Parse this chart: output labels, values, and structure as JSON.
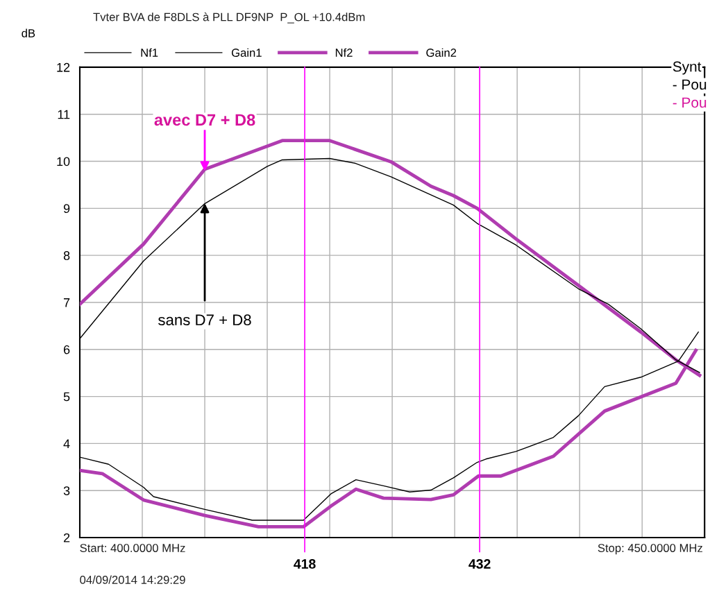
{
  "chart_data": {
    "type": "line",
    "title": "Tvter BVA de F8DLS à PLL DF9NP  P_OL +10.4dBm",
    "ylabel": "dB",
    "xlim": [
      400,
      450
    ],
    "xticks": [
      {
        "value": 400,
        "label": null
      },
      {
        "value": 405,
        "label": null
      },
      {
        "value": 410,
        "label": null
      },
      {
        "value": 415,
        "label": null
      },
      {
        "value": 420,
        "label": null
      },
      {
        "value": 425,
        "label": null
      },
      {
        "value": 430,
        "label": null
      },
      {
        "value": 435,
        "label": null
      },
      {
        "value": 440,
        "label": null
      },
      {
        "value": 445,
        "label": null
      },
      {
        "value": 450,
        "label": null
      }
    ],
    "ylim": [
      2,
      12
    ],
    "yticks": [
      2,
      3,
      4,
      5,
      6,
      7,
      8,
      9,
      10,
      11,
      12
    ],
    "tick_labels": "y",
    "grid": true,
    "legend": "top left",
    "marker": "none",
    "line_style": "solid",
    "series": [
      {
        "name": "Nf1",
        "color": "#000000",
        "x": [
          400,
          402.3,
          405.1,
          405.9,
          410,
          413.8,
          417.9,
          420.1,
          422.1,
          424.3,
          426.4,
          428.1,
          429.9,
          431.8,
          432.5,
          434.9,
          437.9,
          439.9,
          442.0,
          444.9,
          447.9,
          449.5
        ],
        "values": [
          3.71,
          3.56,
          3.07,
          2.87,
          2.6,
          2.37,
          2.37,
          2.93,
          3.23,
          3.1,
          2.97,
          3.01,
          3.27,
          3.6,
          3.67,
          3.83,
          4.13,
          4.59,
          5.21,
          5.41,
          5.75,
          6.37
        ]
      },
      {
        "name": "Gain1",
        "color": "#000000",
        "x": [
          400,
          405.1,
          410,
          415,
          416.2,
          420,
          422,
          424.9,
          429.9,
          431.8,
          434.9,
          439.9,
          442.3,
          444.9,
          447.7,
          449.6
        ],
        "values": [
          6.23,
          7.88,
          9.1,
          9.89,
          10.03,
          10.06,
          9.96,
          9.67,
          9.07,
          8.68,
          8.22,
          7.29,
          6.96,
          6.44,
          5.78,
          5.51
        ]
      },
      {
        "name": "Nf2",
        "color": "#b03cb0",
        "x": [
          400,
          401.8,
          405.1,
          410,
          414.3,
          417.9,
          420.1,
          422.1,
          424.3,
          428.1,
          429.9,
          431.9,
          433.7,
          437.9,
          442.0,
          447.7,
          449.3
        ],
        "values": [
          3.43,
          3.36,
          2.8,
          2.47,
          2.23,
          2.23,
          2.67,
          3.03,
          2.84,
          2.81,
          2.91,
          3.31,
          3.31,
          3.73,
          4.69,
          5.28,
          5.98
        ]
      },
      {
        "name": "Gain2",
        "color": "#b03cb0",
        "x": [
          400,
          405.1,
          410,
          415,
          416.2,
          420,
          424.9,
          428.1,
          429.9,
          431.8,
          434.9,
          439.9,
          444.9,
          447.7,
          449.6
        ],
        "values": [
          6.96,
          8.24,
          9.83,
          10.32,
          10.44,
          10.44,
          9.99,
          9.47,
          9.27,
          9.0,
          8.35,
          7.36,
          6.37,
          5.78,
          5.45
        ]
      }
    ],
    "ref_lines": [
      {
        "axis": "x",
        "value": 418,
        "label": "418",
        "color": "#ff00ff"
      },
      {
        "axis": "x",
        "value": 432,
        "label": "432",
        "color": "#ff00ff"
      }
    ],
    "annotations": [
      {
        "text": "avec D7 + D8",
        "x": 410,
        "y": 9.75
      },
      {
        "text": "sans D7 + D8",
        "x": 410,
        "y": 9.15
      },
      "Start: 400.0000 MHz",
      "Stop: 450.0000 MHz",
      "04/09/2014 14:29:29",
      "Synt",
      "- Pou",
      "- Pou"
    ]
  }
}
